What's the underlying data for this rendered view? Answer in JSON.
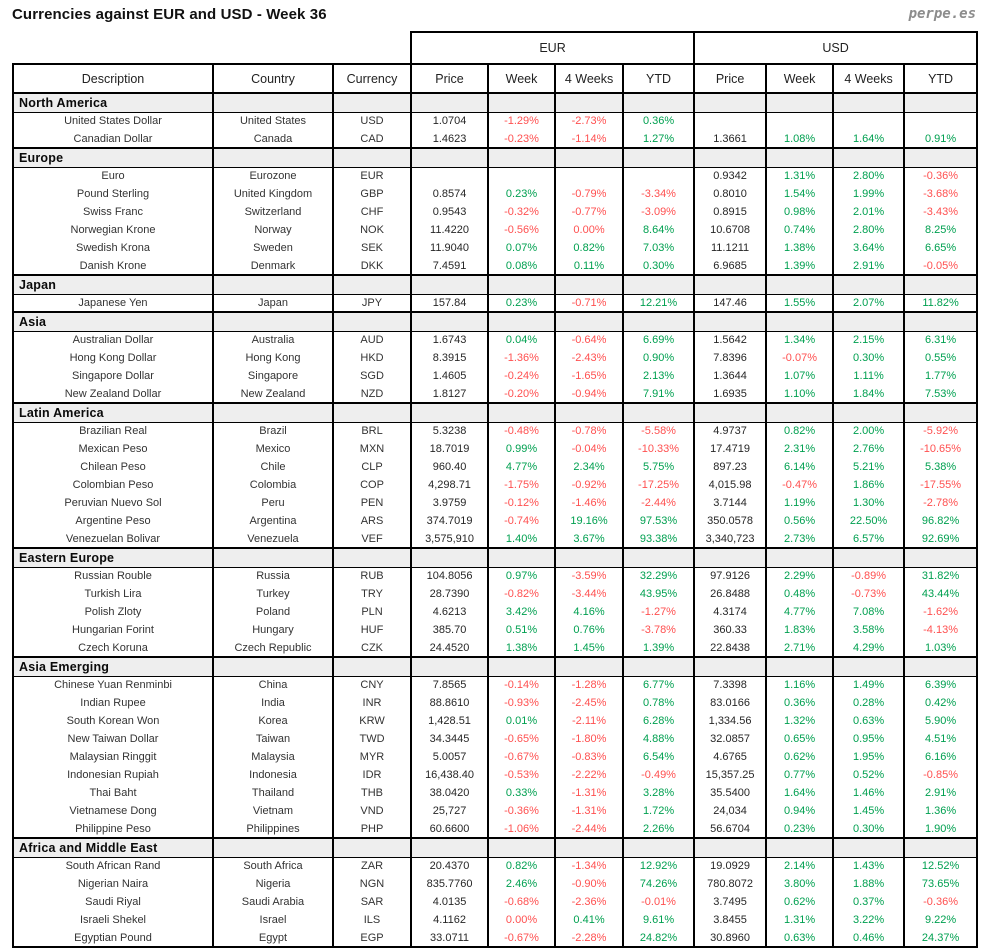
{
  "header": {
    "title": "Currencies against EUR and USD - Week 36",
    "brand": "perpe.es"
  },
  "colors": {
    "positive": "#00A050",
    "negative": "#FF5050",
    "section_bg": "#EEEEEE",
    "border": "#000000",
    "brand_gray": "#8C8C8C"
  },
  "chart_data": {
    "type": "table",
    "title": "Currencies against EUR and USD - Week 36",
    "group_headers": [
      {
        "label": "EUR",
        "span": 4
      },
      {
        "label": "USD",
        "span": 4
      }
    ],
    "columns": [
      "Description",
      "Country",
      "Currency",
      "Price",
      "Week",
      "4 Weeks",
      "YTD",
      "Price",
      "Week",
      "4 Weeks",
      "YTD"
    ],
    "sections": [
      {
        "name": "North America",
        "rows": [
          {
            "cells": [
              "United States Dollar",
              "United States",
              "USD",
              "1.0704",
              "-1.29%",
              "-2.73%",
              "0.36%",
              "",
              "",
              "",
              ""
            ]
          },
          {
            "cells": [
              "Canadian Dollar",
              "Canada",
              "CAD",
              "1.4623",
              "-0.23%",
              "-1.14%",
              "1.27%",
              "1.3661",
              "1.08%",
              "1.64%",
              "0.91%"
            ]
          }
        ]
      },
      {
        "name": "Europe",
        "rows": [
          {
            "cells": [
              "Euro",
              "Eurozone",
              "EUR",
              "",
              "",
              "",
              "",
              "0.9342",
              "1.31%",
              "2.80%",
              "-0.36%"
            ]
          },
          {
            "cells": [
              "Pound Sterling",
              "United Kingdom",
              "GBP",
              "0.8574",
              "0.23%",
              "-0.79%",
              "-3.34%",
              "0.8010",
              "1.54%",
              "1.99%",
              "-3.68%"
            ]
          },
          {
            "cells": [
              "Swiss Franc",
              "Switzerland",
              "CHF",
              "0.9543",
              "-0.32%",
              "-0.77%",
              "-3.09%",
              "0.8915",
              "0.98%",
              "2.01%",
              "-3.43%"
            ]
          },
          {
            "cells": [
              "Norwegian Krone",
              "Norway",
              "NOK",
              "11.4220",
              "-0.56%",
              "0.00%",
              "8.64%",
              "10.6708",
              "0.74%",
              "2.80%",
              "8.25%"
            ]
          },
          {
            "cells": [
              "Swedish Krona",
              "Sweden",
              "SEK",
              "11.9040",
              "0.07%",
              "0.82%",
              "7.03%",
              "11.1211",
              "1.38%",
              "3.64%",
              "6.65%"
            ]
          },
          {
            "cells": [
              "Danish Krone",
              "Denmark",
              "DKK",
              "7.4591",
              "0.08%",
              "0.11%",
              "0.30%",
              "6.9685",
              "1.39%",
              "2.91%",
              "-0.05%"
            ]
          }
        ]
      },
      {
        "name": "Japan",
        "rows": [
          {
            "cells": [
              "Japanese Yen",
              "Japan",
              "JPY",
              "157.84",
              "0.23%",
              "-0.71%",
              "12.21%",
              "147.46",
              "1.55%",
              "2.07%",
              "11.82%"
            ]
          }
        ]
      },
      {
        "name": "Asia",
        "rows": [
          {
            "cells": [
              "Australian Dollar",
              "Australia",
              "AUD",
              "1.6743",
              "0.04%",
              "-0.64%",
              "6.69%",
              "1.5642",
              "1.34%",
              "2.15%",
              "6.31%"
            ]
          },
          {
            "cells": [
              "Hong Kong Dollar",
              "Hong Kong",
              "HKD",
              "8.3915",
              "-1.36%",
              "-2.43%",
              "0.90%",
              "7.8396",
              "-0.07%",
              "0.30%",
              "0.55%"
            ]
          },
          {
            "cells": [
              "Singapore Dollar",
              "Singapore",
              "SGD",
              "1.4605",
              "-0.24%",
              "-1.65%",
              "2.13%",
              "1.3644",
              "1.07%",
              "1.11%",
              "1.77%"
            ]
          },
          {
            "cells": [
              "New Zealand Dollar",
              "New Zealand",
              "NZD",
              "1.8127",
              "-0.20%",
              "-0.94%",
              "7.91%",
              "1.6935",
              "1.10%",
              "1.84%",
              "7.53%"
            ]
          }
        ]
      },
      {
        "name": "Latin America",
        "rows": [
          {
            "cells": [
              "Brazilian Real",
              "Brazil",
              "BRL",
              "5.3238",
              "-0.48%",
              "-0.78%",
              "-5.58%",
              "4.9737",
              "0.82%",
              "2.00%",
              "-5.92%"
            ]
          },
          {
            "cells": [
              "Mexican Peso",
              "Mexico",
              "MXN",
              "18.7019",
              "0.99%",
              "-0.04%",
              "-10.33%",
              "17.4719",
              "2.31%",
              "2.76%",
              "-10.65%"
            ]
          },
          {
            "cells": [
              "Chilean Peso",
              "Chile",
              "CLP",
              "960.40",
              "4.77%",
              "2.34%",
              "5.75%",
              "897.23",
              "6.14%",
              "5.21%",
              "5.38%"
            ]
          },
          {
            "cells": [
              "Colombian Peso",
              "Colombia",
              "COP",
              "4,298.71",
              "-1.75%",
              "-0.92%",
              "-17.25%",
              "4,015.98",
              "-0.47%",
              "1.86%",
              "-17.55%"
            ]
          },
          {
            "cells": [
              "Peruvian Nuevo Sol",
              "Peru",
              "PEN",
              "3.9759",
              "-0.12%",
              "-1.46%",
              "-2.44%",
              "3.7144",
              "1.19%",
              "1.30%",
              "-2.78%"
            ]
          },
          {
            "cells": [
              "Argentine Peso",
              "Argentina",
              "ARS",
              "374.7019",
              "-0.74%",
              "19.16%",
              "97.53%",
              "350.0578",
              "0.56%",
              "22.50%",
              "96.82%"
            ]
          },
          {
            "cells": [
              "Venezuelan Bolivar",
              "Venezuela",
              "VEF",
              "3,575,910",
              "1.40%",
              "3.67%",
              "93.38%",
              "3,340,723",
              "2.73%",
              "6.57%",
              "92.69%"
            ]
          }
        ]
      },
      {
        "name": "Eastern Europe",
        "rows": [
          {
            "cells": [
              "Russian Rouble",
              "Russia",
              "RUB",
              "104.8056",
              "0.97%",
              "-3.59%",
              "32.29%",
              "97.9126",
              "2.29%",
              "-0.89%",
              "31.82%"
            ]
          },
          {
            "cells": [
              "Turkish Lira",
              "Turkey",
              "TRY",
              "28.7390",
              "-0.82%",
              "-3.44%",
              "43.95%",
              "26.8488",
              "0.48%",
              "-0.73%",
              "43.44%"
            ]
          },
          {
            "cells": [
              "Polish Zloty",
              "Poland",
              "PLN",
              "4.6213",
              "3.42%",
              "4.16%",
              "-1.27%",
              "4.3174",
              "4.77%",
              "7.08%",
              "-1.62%"
            ]
          },
          {
            "cells": [
              "Hungarian Forint",
              "Hungary",
              "HUF",
              "385.70",
              "0.51%",
              "0.76%",
              "-3.78%",
              "360.33",
              "1.83%",
              "3.58%",
              "-4.13%"
            ]
          },
          {
            "cells": [
              "Czech Koruna",
              "Czech Republic",
              "CZK",
              "24.4520",
              "1.38%",
              "1.45%",
              "1.39%",
              "22.8438",
              "2.71%",
              "4.29%",
              "1.03%"
            ]
          }
        ]
      },
      {
        "name": "Asia Emerging",
        "rows": [
          {
            "cells": [
              "Chinese Yuan Renminbi",
              "China",
              "CNY",
              "7.8565",
              "-0.14%",
              "-1.28%",
              "6.77%",
              "7.3398",
              "1.16%",
              "1.49%",
              "6.39%"
            ]
          },
          {
            "cells": [
              "Indian Rupee",
              "India",
              "INR",
              "88.8610",
              "-0.93%",
              "-2.45%",
              "0.78%",
              "83.0166",
              "0.36%",
              "0.28%",
              "0.42%"
            ]
          },
          {
            "cells": [
              "South Korean Won",
              "Korea",
              "KRW",
              "1,428.51",
              "0.01%",
              "-2.11%",
              "6.28%",
              "1,334.56",
              "1.32%",
              "0.63%",
              "5.90%"
            ]
          },
          {
            "cells": [
              "New Taiwan Dollar",
              "Taiwan",
              "TWD",
              "34.3445",
              "-0.65%",
              "-1.80%",
              "4.88%",
              "32.0857",
              "0.65%",
              "0.95%",
              "4.51%"
            ]
          },
          {
            "cells": [
              "Malaysian Ringgit",
              "Malaysia",
              "MYR",
              "5.0057",
              "-0.67%",
              "-0.83%",
              "6.54%",
              "4.6765",
              "0.62%",
              "1.95%",
              "6.16%"
            ]
          },
          {
            "cells": [
              "Indonesian Rupiah",
              "Indonesia",
              "IDR",
              "16,438.40",
              "-0.53%",
              "-2.22%",
              "-0.49%",
              "15,357.25",
              "0.77%",
              "0.52%",
              "-0.85%"
            ]
          },
          {
            "cells": [
              "Thai Baht",
              "Thailand",
              "THB",
              "38.0420",
              "0.33%",
              "-1.31%",
              "3.28%",
              "35.5400",
              "1.64%",
              "1.46%",
              "2.91%"
            ]
          },
          {
            "cells": [
              "Vietnamese Dong",
              "Vietnam",
              "VND",
              "25,727",
              "-0.36%",
              "-1.31%",
              "1.72%",
              "24,034",
              "0.94%",
              "1.45%",
              "1.36%"
            ]
          },
          {
            "cells": [
              "Philippine Peso",
              "Philippines",
              "PHP",
              "60.6600",
              "-1.06%",
              "-2.44%",
              "2.26%",
              "56.6704",
              "0.23%",
              "0.30%",
              "1.90%"
            ]
          }
        ]
      },
      {
        "name": "Africa and Middle East",
        "rows": [
          {
            "cells": [
              "South African Rand",
              "South Africa",
              "ZAR",
              "20.4370",
              "0.82%",
              "-1.34%",
              "12.92%",
              "19.0929",
              "2.14%",
              "1.43%",
              "12.52%"
            ]
          },
          {
            "cells": [
              "Nigerian Naira",
              "Nigeria",
              "NGN",
              "835.7760",
              "2.46%",
              "-0.90%",
              "74.26%",
              "780.8072",
              "3.80%",
              "1.88%",
              "73.65%"
            ]
          },
          {
            "cells": [
              "Saudi Riyal",
              "Saudi Arabia",
              "SAR",
              "4.0135",
              "-0.68%",
              "-2.36%",
              "-0.01%",
              "3.7495",
              "0.62%",
              "0.37%",
              "-0.36%"
            ]
          },
          {
            "cells": [
              "Israeli Shekel",
              "Israel",
              "ILS",
              "4.1162",
              "0.00%",
              "0.41%",
              "9.61%",
              "3.8455",
              "1.31%",
              "3.22%",
              "9.22%"
            ]
          },
          {
            "cells": [
              "Egyptian Pound",
              "Egypt",
              "EGP",
              "33.0711",
              "-0.67%",
              "-2.28%",
              "24.82%",
              "30.8960",
              "0.63%",
              "0.46%",
              "24.37%"
            ]
          }
        ]
      }
    ]
  }
}
